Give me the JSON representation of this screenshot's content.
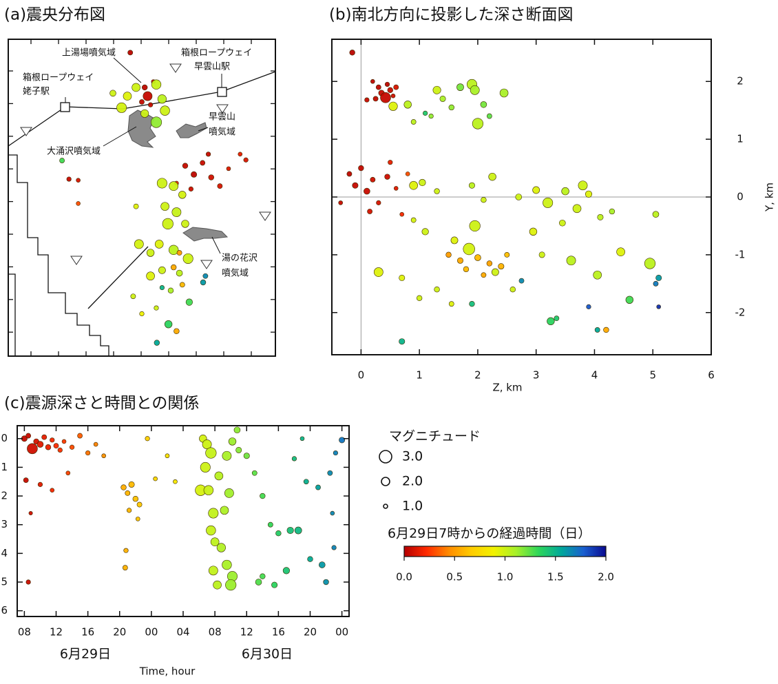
{
  "chart_data": [
    {
      "type": "scatter",
      "title": "(a)震央分布図",
      "annotations": [
        [
          "上湯場噴気域"
        ],
        [
          "箱根ロープウェイ",
          "早雲山駅"
        ],
        [
          "箱根ロープウェイ",
          "姥子駅"
        ],
        [
          "早雲山",
          "噴気域"
        ],
        [
          "大涌沢噴気域"
        ],
        [
          "湯の花沢",
          "噴気域"
        ]
      ],
      "xlim": [
        -2.31,
        2.31
      ],
      "ylim": [
        -2.73,
        2.73
      ],
      "x": [
        0.1,
        0.05,
        0.15,
        -0.2,
        0.2,
        0.0,
        -0.35,
        -0.1,
        0.25,
        0.35,
        0.4,
        -0.25,
        0.05,
        0.25,
        -0.5,
        0.75,
        0.9,
        1.05,
        1.2,
        1.35,
        0.85,
        1.5,
        1.7,
        1.15,
        0.6,
        0.35,
        0.55,
        0.7,
        0.4,
        0.6,
        0.45,
        0.75,
        0.3,
        0.55,
        0.8,
        0.35,
        0.65,
        0.15,
        -0.05,
        0.15,
        -0.15,
        0.0,
        0.5,
        0.25,
        -0.1,
        0.55,
        0.7,
        0.65,
        0.6,
        0.46,
        0.82,
        1.06,
        0.26,
        1.1,
        -1.38,
        0.35,
        -1.26,
        -1.1,
        1.8,
        -1.1
      ],
      "y": [
        1.75,
        1.9,
        1.6,
        2.5,
        2.0,
        1.65,
        1.55,
        1.9,
        1.95,
        1.7,
        1.5,
        1.75,
        1.45,
        1.3,
        1.8,
        0.55,
        0.4,
        0.6,
        0.35,
        0.2,
        0.15,
        0.5,
        0.75,
        0.75,
        0.25,
        0.25,
        0.2,
        0.05,
        -0.15,
        -0.25,
        -0.45,
        -0.45,
        -0.8,
        -0.9,
        -1.05,
        -1.25,
        -1.3,
        -1.35,
        -0.8,
        -0.95,
        -1.7,
        -2.0,
        -1.6,
        -1.9,
        -0.15,
        -1.2,
        -1.5,
        -0.95,
        -2.3,
        -2.18,
        -1.8,
        -1.46,
        -2.5,
        -1.35,
        0.64,
        -1.55,
        0.32,
        0.3,
        0.65,
        -0.1
      ],
      "magnitude": [
        2.2,
        1.3,
        1.1,
        1.2,
        1.0,
        1.2,
        2.4,
        2.0,
        2.3,
        2.1,
        2.3,
        2.0,
        1.9,
        2.6,
        1.5,
        1.3,
        1.4,
        1.2,
        1.3,
        1.2,
        1.1,
        1.0,
        1.0,
        1.1,
        1.0,
        2.4,
        2.2,
        1.8,
        2.0,
        2.2,
        2.6,
        1.8,
        2.0,
        2.3,
        2.4,
        1.7,
        1.5,
        2.0,
        2.2,
        1.8,
        1.2,
        1.1,
        1.3,
        1.1,
        1.2,
        1.3,
        1.2,
        1.2,
        1.3,
        1.8,
        1.6,
        1.3,
        1.3,
        1.2,
        1.2,
        1.1,
        1.1,
        1.0,
        1.1,
        1.0
      ],
      "elapsed_days": [
        0.05,
        0.03,
        0.05,
        0.02,
        0.08,
        0.04,
        0.98,
        1.0,
        1.02,
        1.05,
        1.0,
        0.95,
        1.0,
        1.15,
        1.0,
        0.05,
        0.03,
        0.06,
        0.08,
        0.1,
        0.07,
        0.12,
        0.15,
        0.05,
        0.2,
        1.0,
        1.0,
        0.98,
        1.0,
        1.02,
        1.0,
        1.0,
        0.95,
        1.05,
        1.0,
        1.0,
        1.05,
        0.95,
        0.98,
        1.0,
        1.0,
        0.9,
        1.1,
        1.0,
        0.95,
        0.55,
        0.6,
        0.5,
        0.55,
        1.35,
        1.3,
        1.6,
        1.55,
        1.65,
        1.3,
        1.5,
        0.05,
        0.1,
        0.1,
        0.3
      ]
    },
    {
      "type": "scatter",
      "title": "(b)南北方向に投影した深さ断面図",
      "x_label": "Z, km",
      "y_label": "Y, km",
      "xlim": [
        -0.5,
        6
      ],
      "ylim": [
        -2.73,
        2.73
      ],
      "xticks": [
        0,
        1,
        2,
        3,
        4,
        5,
        6
      ],
      "yticks": [
        -2,
        -1,
        0,
        1,
        2
      ],
      "x": [
        0.3,
        0.35,
        0.45,
        0.5,
        0.25,
        0.55,
        0.6,
        0.2,
        0.42,
        -0.15,
        0.1,
        0.55,
        0.8,
        1.3,
        1.4,
        1.55,
        1.7,
        1.9,
        1.95,
        2.0,
        2.1,
        2.45,
        0.9,
        1.2,
        2.2,
        -0.2,
        -0.1,
        0.0,
        0.1,
        0.2,
        0.3,
        0.45,
        0.6,
        0.15,
        -0.35,
        0.5,
        0.7,
        0.8,
        0.9,
        1.05,
        1.3,
        1.9,
        2.25,
        2.7,
        3.0,
        3.2,
        3.5,
        3.7,
        3.8,
        3.9,
        4.1,
        4.3,
        2.1,
        2.95,
        3.45,
        0.3,
        1.1,
        1.6,
        1.95,
        1.85,
        2.3,
        3.1,
        3.6,
        4.05,
        4.45,
        4.95,
        5.05,
        0.7,
        1.0,
        1.3,
        1.55,
        2.6,
        0.9,
        1.5,
        1.7,
        2.0,
        2.2,
        2.4,
        2.1,
        1.8,
        2.5,
        4.2,
        3.25,
        3.35,
        4.6,
        5.1,
        5.05,
        1.9,
        0.7,
        4.05,
        3.9,
        2.75,
        5.1,
        1.1
      ],
      "y": [
        1.9,
        1.8,
        1.95,
        1.85,
        1.7,
        1.75,
        1.9,
        2.0,
        1.72,
        2.5,
        1.68,
        1.57,
        1.6,
        1.85,
        1.7,
        1.55,
        1.9,
        1.95,
        1.85,
        1.27,
        1.6,
        1.8,
        1.3,
        1.4,
        1.4,
        0.4,
        0.2,
        0.5,
        0.1,
        0.3,
        -0.1,
        0.35,
        0.15,
        -0.25,
        -0.1,
        0.6,
        -0.3,
        0.4,
        0.2,
        0.25,
        0.1,
        0.2,
        0.35,
        0.0,
        0.12,
        -0.1,
        0.1,
        -0.2,
        0.2,
        0.05,
        -0.35,
        -0.25,
        -0.05,
        -0.6,
        -0.45,
        -1.3,
        -0.6,
        -0.75,
        -0.5,
        -0.9,
        -1.3,
        -1.0,
        -1.1,
        -1.35,
        -0.95,
        -1.15,
        -0.3,
        -1.4,
        -1.75,
        -1.6,
        -1.85,
        -1.6,
        -0.4,
        -1.0,
        -1.1,
        -1.05,
        -1.15,
        -1.2,
        -1.35,
        -1.25,
        -1.0,
        -2.3,
        -2.15,
        -2.1,
        -1.78,
        -1.4,
        -1.5,
        -1.85,
        -2.5,
        -2.3,
        -1.9,
        -1.45,
        -1.9,
        1.45
      ],
      "magnitude": [
        1.2,
        1.4,
        1.1,
        1.3,
        1.2,
        1.0,
        1.2,
        1.0,
        2.5,
        1.3,
        1.1,
        2.1,
        1.8,
        1.9,
        1.4,
        1.3,
        1.7,
        2.4,
        2.2,
        2.6,
        1.5,
        2.0,
        1.2,
        1.1,
        1.2,
        1.2,
        1.4,
        1.3,
        1.5,
        1.2,
        1.1,
        1.3,
        1.0,
        1.2,
        1.0,
        1.1,
        1.0,
        1.0,
        2.0,
        1.6,
        1.3,
        1.4,
        1.8,
        1.5,
        1.7,
        2.4,
        1.8,
        2.0,
        2.2,
        1.6,
        1.4,
        1.3,
        1.3,
        1.8,
        1.5,
        2.2,
        1.6,
        1.7,
        2.6,
        2.8,
        1.7,
        1.4,
        2.2,
        2.0,
        2.0,
        2.6,
        1.5,
        1.4,
        1.3,
        1.3,
        1.2,
        1.3,
        1.2,
        1.3,
        1.4,
        1.5,
        1.3,
        1.4,
        1.2,
        1.3,
        1.2,
        1.3,
        1.8,
        1.2,
        1.8,
        1.4,
        1.2,
        1.3,
        1.4,
        1.2,
        1.1,
        1.2,
        1.0,
        1.1
      ],
      "elapsed_days": [
        0.03,
        0.05,
        0.02,
        0.06,
        0.04,
        0.08,
        0.1,
        0.03,
        0.05,
        0.02,
        0.05,
        0.95,
        1.05,
        1.0,
        1.1,
        1.15,
        1.2,
        1.05,
        1.1,
        1.05,
        1.2,
        1.1,
        1.05,
        1.15,
        1.25,
        0.03,
        0.05,
        0.04,
        0.06,
        0.08,
        0.1,
        0.07,
        0.12,
        0.09,
        0.05,
        0.15,
        0.2,
        0.3,
        0.95,
        1.0,
        1.0,
        1.05,
        1.0,
        1.0,
        0.95,
        1.0,
        1.05,
        1.0,
        1.0,
        0.95,
        1.05,
        1.1,
        1.0,
        0.95,
        1.0,
        0.95,
        1.0,
        0.95,
        1.0,
        0.98,
        1.0,
        1.0,
        1.05,
        1.05,
        0.95,
        1.05,
        1.05,
        0.95,
        1.0,
        1.0,
        0.95,
        1.0,
        0.98,
        0.5,
        0.55,
        0.6,
        0.52,
        0.58,
        0.55,
        0.6,
        0.62,
        0.55,
        1.35,
        1.4,
        1.3,
        1.6,
        1.7,
        1.45,
        1.5,
        1.55,
        1.8,
        1.65,
        1.9,
        1.4
      ]
    },
    {
      "type": "scatter",
      "title": "(c)震源深さと時間との関係",
      "x_label": "Time, hour",
      "dates": [
        "6月29日",
        "6月30日"
      ],
      "y_reversed": true,
      "xlim": [
        7.1,
        48.9
      ],
      "ylim": [
        -0.45,
        6.2
      ],
      "xticks": [
        {
          "value": 8,
          "label": "08"
        },
        12,
        16,
        20,
        {
          "value": 24,
          "label": "00"
        },
        {
          "value": 28,
          "label": "04"
        },
        {
          "value": 32,
          "label": "08"
        },
        {
          "value": 36,
          "label": "12"
        },
        {
          "value": 40,
          "label": "16"
        },
        {
          "value": 44,
          "label": "20"
        },
        {
          "value": 48,
          "label": "00"
        }
      ],
      "yticks": [
        0,
        1,
        2,
        3,
        4,
        5,
        6
      ],
      "x": [
        9,
        8,
        8.5,
        9.5,
        10,
        10.5,
        11,
        11.5,
        12,
        12.5,
        13,
        14,
        15,
        16,
        17,
        18,
        8.2,
        10,
        11.5,
        8.5,
        8.8,
        13.5,
        20.5,
        21,
        21.5,
        22,
        22.5,
        21.2,
        22.3,
        20.8,
        20.7,
        24.5,
        23.5,
        26,
        27,
        30.5,
        31,
        31.5,
        30.8,
        30.2,
        31.2,
        32.5,
        33.5,
        34.2,
        33.8,
        33.2,
        31.8,
        31.5,
        32,
        32.8,
        31.8,
        33.5,
        34.2,
        34,
        32.3,
        35,
        34.8,
        36,
        37,
        38,
        39,
        40,
        41.5,
        42.5,
        41,
        38,
        37.5,
        39.5,
        43.5,
        42,
        44,
        43,
        45,
        45.5,
        46.5,
        47.2,
        48,
        46,
        47,
        46.8
      ],
      "y": [
        0.35,
        0.0,
        -0.1,
        0.1,
        0.2,
        -0.05,
        0.3,
        0.05,
        0.25,
        0.4,
        0.1,
        0.3,
        -0.1,
        0.5,
        0.2,
        0.6,
        1.45,
        1.6,
        1.8,
        5.0,
        2.6,
        1.2,
        1.7,
        1.9,
        1.6,
        2.1,
        2.3,
        2.5,
        2.8,
        3.9,
        4.5,
        1.4,
        0.0,
        0.6,
        1.5,
        0.0,
        0.2,
        0.5,
        1.0,
        1.8,
        1.8,
        1.3,
        0.6,
        0.1,
        1.9,
        2.5,
        2.6,
        3.2,
        3.6,
        3.8,
        4.6,
        4.4,
        4.8,
        5.1,
        5.1,
        0.4,
        -0.3,
        0.6,
        1.2,
        2.0,
        3.0,
        3.3,
        3.2,
        3.2,
        4.6,
        4.8,
        5.0,
        5.1,
        1.5,
        0.7,
        4.2,
        0.0,
        1.7,
        4.4,
        1.2,
        0.5,
        0.05,
        5.0,
        3.8,
        2.6
      ],
      "magnitude": [
        2.5,
        1.4,
        1.2,
        1.3,
        1.5,
        1.2,
        1.3,
        1.1,
        1.2,
        1.1,
        1.0,
        1.1,
        1.2,
        1.1,
        1.0,
        1.0,
        1.2,
        1.1,
        1.0,
        1.1,
        0.9,
        1.0,
        1.3,
        1.2,
        1.4,
        1.3,
        1.2,
        1.1,
        1.0,
        1.1,
        1.2,
        1.0,
        1.1,
        1.0,
        1.0,
        1.8,
        2.2,
        2.6,
        2.4,
        2.6,
        2.3,
        2.0,
        2.2,
        1.8,
        2.2,
        2.0,
        2.4,
        2.3,
        2.0,
        2.1,
        2.2,
        2.3,
        2.4,
        2.6,
        2.0,
        1.4,
        1.5,
        1.4,
        1.2,
        1.3,
        1.2,
        1.3,
        1.6,
        1.7,
        1.6,
        1.3,
        1.5,
        1.4,
        1.2,
        1.1,
        1.3,
        1.0,
        1.2,
        1.5,
        1.2,
        1.1,
        1.4,
        1.3,
        1.1,
        1.0
      ],
      "elapsed_days": [
        0.08,
        0.04,
        0.06,
        0.1,
        0.13,
        0.15,
        0.17,
        0.19,
        0.21,
        0.23,
        0.25,
        0.29,
        0.33,
        0.38,
        0.42,
        0.46,
        0.05,
        0.13,
        0.19,
        0.06,
        0.07,
        0.27,
        0.56,
        0.58,
        0.6,
        0.63,
        0.65,
        0.59,
        0.64,
        0.57,
        0.57,
        0.73,
        0.69,
        0.79,
        0.83,
        0.98,
        1.0,
        1.02,
        1.0,
        0.97,
        1.01,
        1.06,
        1.1,
        1.13,
        1.12,
        1.09,
        1.03,
        1.02,
        1.04,
        1.08,
        1.03,
        1.1,
        1.13,
        1.13,
        1.05,
        1.17,
        1.16,
        1.21,
        1.25,
        1.29,
        1.33,
        1.38,
        1.44,
        1.48,
        1.42,
        1.29,
        1.27,
        1.35,
        1.52,
        1.46,
        1.54,
        1.5,
        1.58,
        1.6,
        1.65,
        1.68,
        1.71,
        1.63,
        1.67,
        1.66
      ]
    }
  ],
  "legend": {
    "title": "マグニチュード",
    "entries": [
      {
        "value": 3,
        "label": "3.0"
      },
      {
        "value": 2,
        "label": "2.0"
      },
      {
        "value": 1,
        "label": "1.0"
      }
    ]
  },
  "colorbar": {
    "title": "6月29日7時からの経過時間（日）",
    "lim": [
      0,
      2
    ],
    "ticks": [
      {
        "value": 0,
        "label": "0.0"
      },
      {
        "value": 0.5,
        "label": "0.5"
      },
      {
        "value": 1,
        "label": "1.0"
      },
      {
        "value": 1.5,
        "label": "1.5"
      },
      {
        "value": 2,
        "label": "2.0"
      }
    ],
    "colors": [
      "#b40000",
      "#ff2a00",
      "#ff8c00",
      "#ffcc00",
      "#f2f200",
      "#a6f02a",
      "#2ed65a",
      "#00a89a",
      "#1a5fd0",
      "#0a0a90"
    ]
  }
}
